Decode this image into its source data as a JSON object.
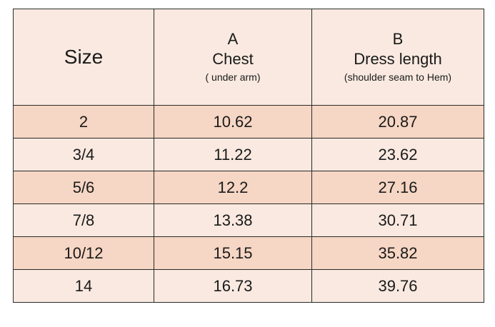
{
  "header": {
    "size": "Size",
    "a": {
      "letter": "A",
      "title": "Chest",
      "note": "( under arm)"
    },
    "b": {
      "letter": "B",
      "title": "Dress length",
      "note": "(shoulder seam to Hem)"
    }
  },
  "table": {
    "rows": [
      [
        "2",
        10.62,
        20.87
      ],
      [
        "3/4",
        11.22,
        23.62
      ],
      [
        "5/6",
        12.2,
        27.16
      ],
      [
        "7/8",
        13.38,
        30.71
      ],
      [
        "10/12",
        15.15,
        35.82
      ],
      [
        "14",
        16.73,
        39.76
      ]
    ]
  }
}
